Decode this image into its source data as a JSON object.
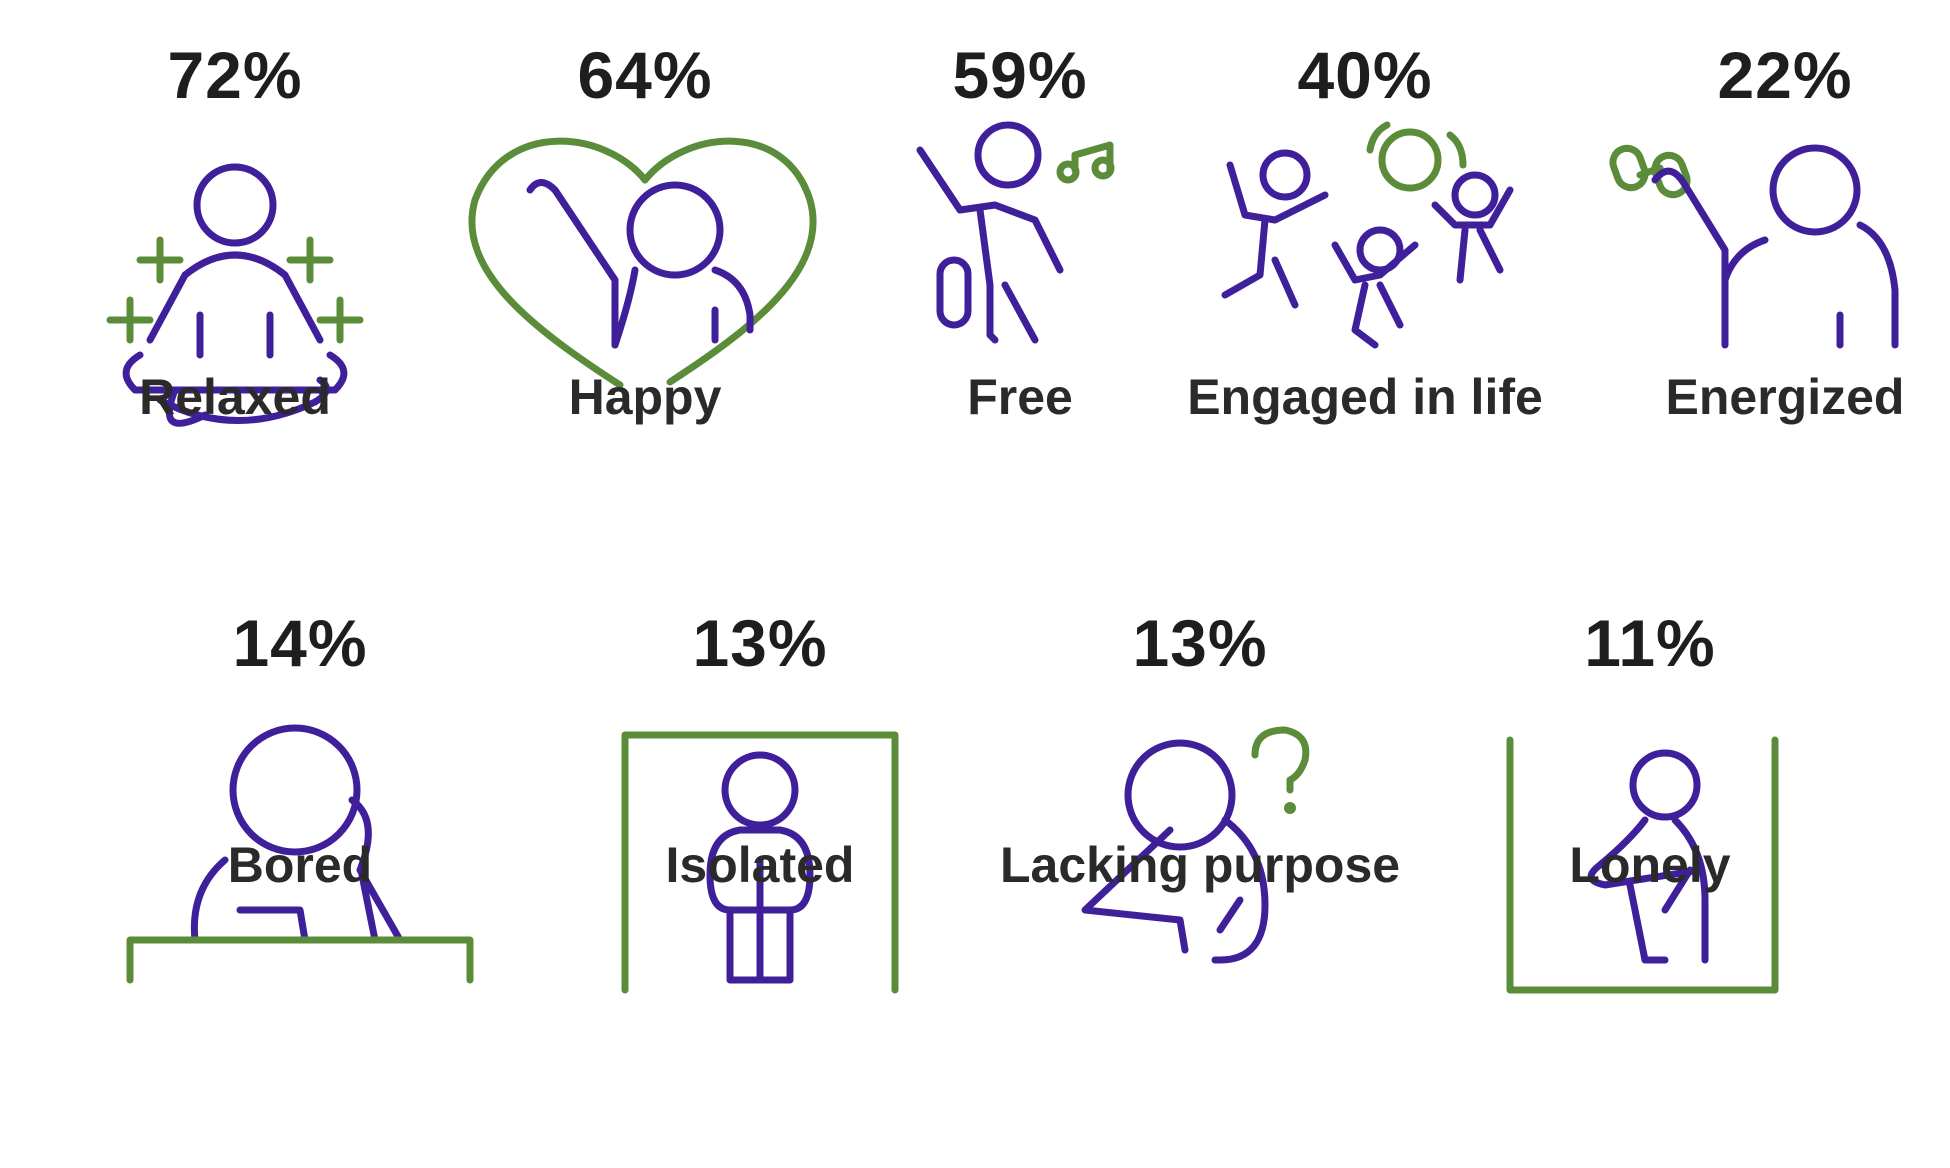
{
  "row1": [
    {
      "percent": "72%",
      "label": "Relaxed",
      "icon": "meditation-icon"
    },
    {
      "percent": "64%",
      "label": "Happy",
      "icon": "heart-person-icon"
    },
    {
      "percent": "59%",
      "label": "Free",
      "icon": "dancing-music-icon"
    },
    {
      "percent": "40%",
      "label": "Engaged in life",
      "icon": "jumping-group-icon"
    },
    {
      "percent": "22%",
      "label": "Energized",
      "icon": "dumbbell-lift-icon"
    }
  ],
  "row2": [
    {
      "percent": "14%",
      "label": "Bored",
      "icon": "bored-desk-icon"
    },
    {
      "percent": "13%",
      "label": "Isolated",
      "icon": "isolated-box-icon"
    },
    {
      "percent": "13%",
      "label": "Lacking purpose",
      "icon": "question-thinker-icon"
    },
    {
      "percent": "11%",
      "label": "Lonely",
      "icon": "lonely-corner-icon"
    }
  ],
  "colors": {
    "purple": "#3f1f9a",
    "green": "#5b8c3a",
    "text": "#222222"
  }
}
